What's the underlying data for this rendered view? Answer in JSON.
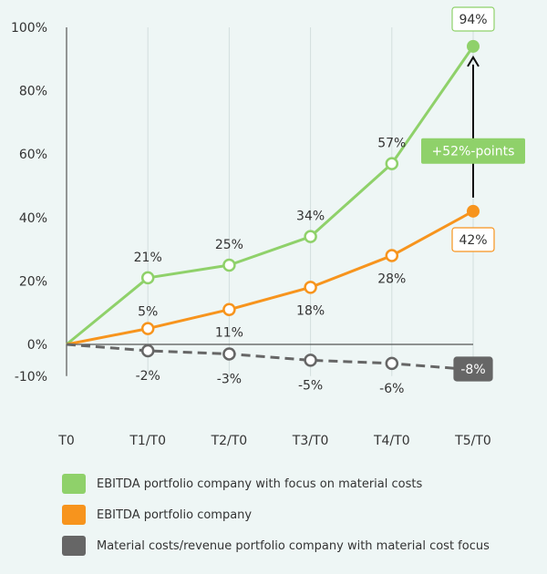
{
  "chart_data": {
    "type": "line",
    "categories": [
      "T0",
      "T1/T0",
      "T2/T0",
      "T3/T0",
      "T4/T0",
      "T5/T0"
    ],
    "ylim": [
      -10,
      100
    ],
    "yticks": [
      100,
      80,
      60,
      40,
      20,
      0,
      -10
    ],
    "ytick_labels": [
      "100%",
      "80%",
      "60%",
      "40%",
      "20%",
      "0%",
      "-10%"
    ],
    "series": [
      {
        "name": "EBITDA portfolio company with focus on material costs",
        "color": "#8fd16a",
        "dash": "solid",
        "values": [
          0,
          21,
          25,
          34,
          57,
          94
        ],
        "labels": [
          "",
          "21%",
          "25%",
          "34%",
          "57%",
          "94%"
        ],
        "label_pos": "above"
      },
      {
        "name": "EBITDA portfolio company",
        "color": "#f7941d",
        "dash": "solid",
        "values": [
          0,
          5,
          11,
          18,
          28,
          42
        ],
        "labels": [
          "",
          "5%",
          "11%",
          "18%",
          "28%",
          "42%"
        ],
        "label_pos": "mixed"
      },
      {
        "name": "Material costs/revenue portfolio company with material cost focus",
        "color": "#666666",
        "dash": "dashed",
        "values": [
          0,
          -2,
          -3,
          -5,
          -6,
          -8
        ],
        "labels": [
          "",
          "-2%",
          "-3%",
          "-5%",
          "-6%",
          "-8%"
        ],
        "label_pos": "below"
      }
    ],
    "annotation": {
      "text": "+52%-points",
      "color": "#8fd16a"
    },
    "grid": "vertical",
    "legend_position": "bottom"
  }
}
